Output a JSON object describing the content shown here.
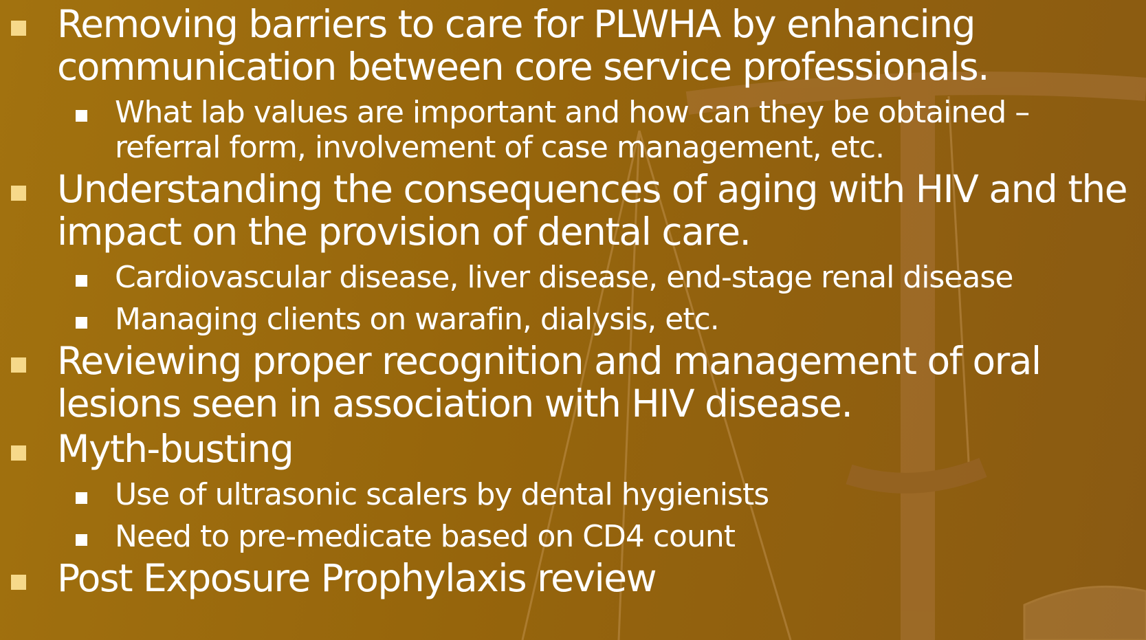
{
  "items": [
    {
      "text": "Removing barriers to care for PLWHA by enhancing communication between core service professionals.",
      "subitems": [
        "What lab values are important and how can they be obtained – referral form, involvement of case management, etc."
      ]
    },
    {
      "text": "Understanding the consequences of aging with HIV and the impact on the provision of dental care.",
      "subitems": [
        "Cardiovascular disease, liver disease, end-stage renal disease",
        "Managing clients on warafin, dialysis, etc."
      ]
    },
    {
      "text": "Reviewing proper recognition and management of oral lesions seen in association with HIV disease.",
      "subitems": []
    },
    {
      "text": "Myth-busting",
      "subitems": [
        "Use of ultrasonic scalers by dental hygienists",
        "Need to pre-medicate based on CD4 count"
      ]
    },
    {
      "text": "Post Exposure Prophylaxis review",
      "subitems": []
    }
  ]
}
